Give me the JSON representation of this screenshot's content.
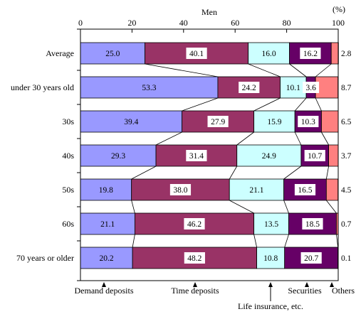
{
  "chart_data": {
    "type": "bar",
    "orientation": "horizontal",
    "stacked": true,
    "percent": true,
    "title": "Men",
    "unit_label": "(%)",
    "xlim": [
      0,
      100
    ],
    "x_ticks": [
      0,
      20,
      40,
      60,
      80,
      100
    ],
    "grid": false,
    "categories": [
      "Average",
      "under 30 years old",
      "30s",
      "40s",
      "50s",
      "60s",
      "70 years or older"
    ],
    "series": [
      {
        "name": "Demand deposits",
        "color": "#9999ff",
        "values": [
          25.0,
          53.3,
          39.4,
          29.3,
          19.8,
          21.1,
          20.2
        ],
        "labels": [
          "25.0",
          "53.3",
          "39.4",
          "29.3",
          "19.8",
          "21.1",
          "20.2"
        ]
      },
      {
        "name": "Time deposits",
        "color": "#993366",
        "values": [
          40.1,
          24.2,
          27.9,
          31.4,
          38.0,
          46.2,
          48.2
        ],
        "labels": [
          "40.1",
          "24.2",
          "27.9",
          "31.4",
          "38.0",
          "46.2",
          "48.2"
        ]
      },
      {
        "name": "Life insurance, etc.",
        "color": "#ccffff",
        "values": [
          16.0,
          10.1,
          15.9,
          24.9,
          21.1,
          13.5,
          10.8
        ],
        "labels": [
          "16.0",
          "10.1",
          "15.9",
          "24.9",
          "21.1",
          "13.5",
          "10.8"
        ]
      },
      {
        "name": "Securities",
        "color": "#660066",
        "values": [
          16.2,
          3.6,
          10.3,
          10.7,
          16.5,
          18.5,
          20.7
        ],
        "labels": [
          "16.2",
          "3.6",
          "10.3",
          "10.7",
          "16.5",
          "18.5",
          "20.7"
        ]
      },
      {
        "name": "Others",
        "color": "#ff8080",
        "values": [
          2.8,
          8.7,
          6.5,
          3.7,
          4.5,
          0.7,
          0.1
        ],
        "labels": [
          "2.8",
          "8.7",
          "6.5",
          "3.7",
          "4.5",
          "0.7",
          "0.1"
        ]
      }
    ],
    "legend": "annotations below bars with arrows"
  }
}
